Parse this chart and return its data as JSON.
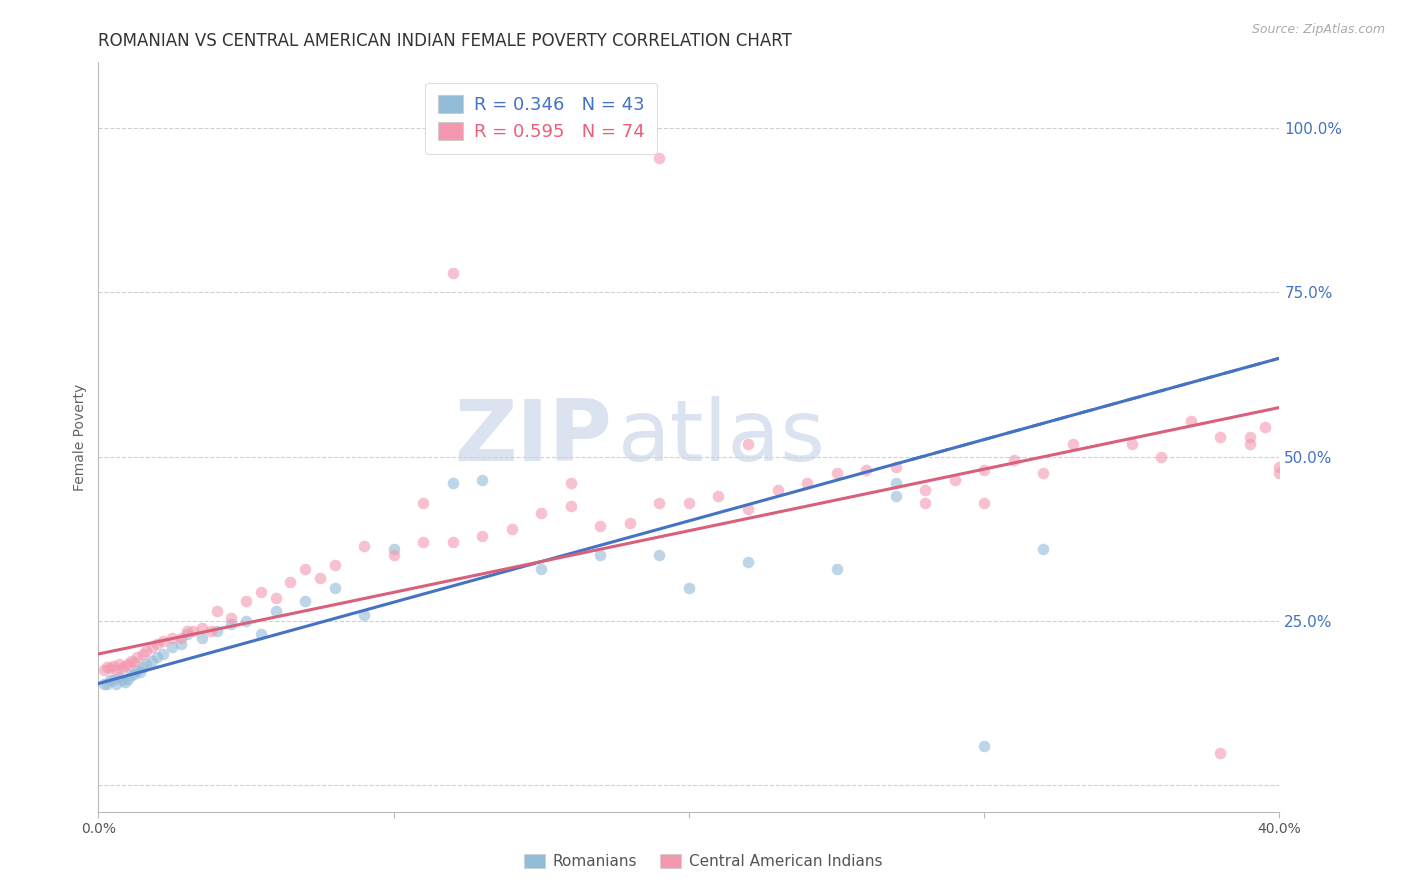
{
  "title": "ROMANIAN VS CENTRAL AMERICAN INDIAN FEMALE POVERTY CORRELATION CHART",
  "source": "Source: ZipAtlas.com",
  "ylabel": "Female Poverty",
  "watermark_zip": "ZIP",
  "watermark_atlas": "atlas",
  "xlim": [
    0.0,
    0.4
  ],
  "ylim": [
    -0.04,
    1.1
  ],
  "ytick_positions": [
    0.0,
    0.25,
    0.5,
    0.75,
    1.0
  ],
  "ytick_labels": [
    "",
    "25.0%",
    "50.0%",
    "75.0%",
    "100.0%"
  ],
  "xtick_positions": [
    0.0,
    0.1,
    0.2,
    0.3,
    0.4
  ],
  "xtick_labels": [
    "0.0%",
    "",
    "",
    "",
    "40.0%"
  ],
  "R_blue": "0.346",
  "N_blue": "43",
  "R_pink": "0.595",
  "N_pink": "74",
  "blue_color": "#92bcd8",
  "pink_color": "#f498b0",
  "blue_line_color": "#4472C4",
  "pink_line_color": "#d9607a",
  "blue_dash_color": "#4472C4",
  "scatter_alpha": 0.6,
  "scatter_size": 70,
  "grid_color": "#d0d0d0",
  "background_color": "#ffffff",
  "title_fontsize": 12,
  "axis_label_fontsize": 10,
  "tick_fontsize": 10,
  "watermark_fontsize_zip": 62,
  "watermark_fontsize_atlas": 62,
  "watermark_color_zip": "#c8d4e8",
  "watermark_color_atlas": "#c8d4e8",
  "legend_fontsize": 13,
  "blue_x": [
    0.002,
    0.003,
    0.004,
    0.005,
    0.006,
    0.007,
    0.008,
    0.009,
    0.01,
    0.011,
    0.012,
    0.013,
    0.014,
    0.015,
    0.016,
    0.018,
    0.02,
    0.022,
    0.025,
    0.028,
    0.03,
    0.035,
    0.04,
    0.045,
    0.05,
    0.055,
    0.06,
    0.07,
    0.08,
    0.09,
    0.1,
    0.12,
    0.13,
    0.15,
    0.17,
    0.19,
    0.2,
    0.22,
    0.25,
    0.27,
    0.3,
    0.32,
    0.27
  ],
  "blue_y": [
    0.155,
    0.155,
    0.16,
    0.16,
    0.155,
    0.165,
    0.16,
    0.158,
    0.162,
    0.168,
    0.17,
    0.175,
    0.172,
    0.18,
    0.185,
    0.19,
    0.195,
    0.2,
    0.21,
    0.215,
    0.23,
    0.225,
    0.235,
    0.245,
    0.25,
    0.23,
    0.265,
    0.28,
    0.3,
    0.26,
    0.36,
    0.46,
    0.465,
    0.33,
    0.35,
    0.35,
    0.3,
    0.34,
    0.33,
    0.44,
    0.06,
    0.36,
    0.46
  ],
  "pink_x": [
    0.002,
    0.003,
    0.004,
    0.005,
    0.006,
    0.007,
    0.008,
    0.009,
    0.01,
    0.011,
    0.012,
    0.013,
    0.015,
    0.016,
    0.018,
    0.02,
    0.022,
    0.025,
    0.028,
    0.03,
    0.032,
    0.035,
    0.038,
    0.04,
    0.045,
    0.05,
    0.055,
    0.06,
    0.065,
    0.07,
    0.075,
    0.08,
    0.09,
    0.1,
    0.11,
    0.12,
    0.13,
    0.14,
    0.15,
    0.16,
    0.17,
    0.18,
    0.19,
    0.2,
    0.21,
    0.22,
    0.23,
    0.24,
    0.25,
    0.26,
    0.27,
    0.28,
    0.29,
    0.3,
    0.31,
    0.32,
    0.33,
    0.35,
    0.36,
    0.37,
    0.38,
    0.39,
    0.395,
    0.4,
    0.19,
    0.22,
    0.28,
    0.3,
    0.39,
    0.4,
    0.12,
    0.11,
    0.16,
    0.38
  ],
  "pink_y": [
    0.175,
    0.18,
    0.178,
    0.182,
    0.175,
    0.185,
    0.178,
    0.182,
    0.185,
    0.19,
    0.188,
    0.195,
    0.2,
    0.205,
    0.21,
    0.215,
    0.22,
    0.225,
    0.225,
    0.235,
    0.235,
    0.24,
    0.235,
    0.265,
    0.255,
    0.28,
    0.295,
    0.285,
    0.31,
    0.33,
    0.315,
    0.335,
    0.365,
    0.35,
    0.37,
    0.37,
    0.38,
    0.39,
    0.415,
    0.425,
    0.395,
    0.4,
    0.43,
    0.43,
    0.44,
    0.42,
    0.45,
    0.46,
    0.475,
    0.48,
    0.485,
    0.45,
    0.465,
    0.48,
    0.495,
    0.475,
    0.52,
    0.52,
    0.5,
    0.555,
    0.53,
    0.52,
    0.545,
    0.475,
    0.955,
    0.52,
    0.43,
    0.43,
    0.53,
    0.485,
    0.78,
    0.43,
    0.46,
    0.05
  ]
}
